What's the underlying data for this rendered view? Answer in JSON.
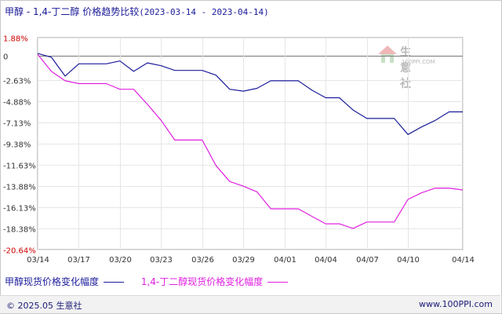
{
  "header": {
    "title": "甲醇 - 1,4-丁二醇 价格趋势比较",
    "date_range": "(2023-03-14 - 2023-04-14)"
  },
  "watermark": {
    "name": "生意社",
    "url": "100PPI.COM"
  },
  "footer": {
    "copyright": "© 2025.05 生意社",
    "site": "www.100PPI.com"
  },
  "colors": {
    "methanol": "#1c1c9c",
    "bdo": "#e020e0",
    "title": "#1a1a99"
  },
  "chart_data": {
    "type": "line",
    "x": [
      "03/14",
      "03/15",
      "03/16",
      "03/17",
      "03/18",
      "03/19",
      "03/20",
      "03/21",
      "03/22",
      "03/23",
      "03/24",
      "03/25",
      "03/26",
      "03/27",
      "03/28",
      "03/29",
      "03/30",
      "03/31",
      "04/01",
      "04/02",
      "04/03",
      "04/04",
      "04/05",
      "04/06",
      "04/07",
      "04/08",
      "04/09",
      "04/10",
      "04/11",
      "04/12",
      "04/13",
      "04/14"
    ],
    "x_tick_labels": [
      "03/14",
      "03/17",
      "03/20",
      "03/23",
      "03/26",
      "03/29",
      "04/01",
      "04/04",
      "04/07",
      "04/10",
      "04/14"
    ],
    "y_tick_labels": [
      "1.88%",
      "0",
      "-2.63%",
      "-4.88%",
      "-7.13%",
      "-9.38%",
      "-11.63%",
      "-13.88%",
      "-16.13%",
      "-18.38%",
      "-20.64%"
    ],
    "y_ticks": [
      1.88,
      0,
      -2.63,
      -4.88,
      -7.13,
      -9.38,
      -11.63,
      -13.88,
      -16.13,
      -18.38,
      -20.64
    ],
    "ylim": [
      -20.64,
      1.88
    ],
    "grid": true,
    "legend_position": "bottom",
    "series": [
      {
        "name": "甲醇现货价格变化幅度",
        "values": [
          0.2,
          -0.2,
          -2.2,
          -0.9,
          -0.9,
          -0.9,
          -0.6,
          -1.7,
          -0.8,
          -1.1,
          -1.6,
          -1.6,
          -1.6,
          -2.1,
          -3.6,
          -3.8,
          -3.5,
          -2.7,
          -2.7,
          -2.7,
          -3.7,
          -4.5,
          -4.5,
          -5.8,
          -6.7,
          -6.7,
          -6.7,
          -8.4,
          -7.6,
          -6.9,
          -6.0,
          -6.0
        ]
      },
      {
        "name": "1,4-丁二醇现货价格变化幅度",
        "values": [
          0.1,
          -1.7,
          -2.7,
          -3.0,
          -3.0,
          -3.0,
          -3.6,
          -3.6,
          -5.2,
          -6.9,
          -9.0,
          -9.0,
          -9.0,
          -11.7,
          -13.4,
          -13.9,
          -14.5,
          -16.3,
          -16.3,
          -16.3,
          -17.1,
          -17.9,
          -17.9,
          -18.4,
          -17.7,
          -17.7,
          -17.7,
          -15.3,
          -14.6,
          -14.1,
          -14.1,
          -14.3
        ]
      }
    ]
  }
}
